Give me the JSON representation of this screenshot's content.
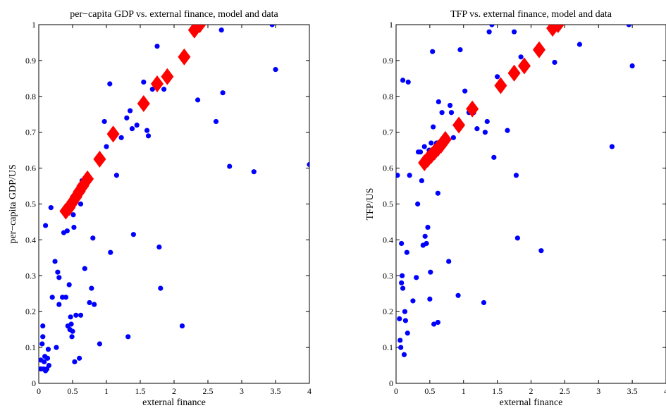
{
  "colors": {
    "data": "#0000ff",
    "model": "#ff0000",
    "axes": "#000000"
  },
  "chart_data": [
    {
      "type": "scatter",
      "title": "per−capita GDP vs. external finance, model and data",
      "xlabel": "external finance",
      "ylabel": "per−capita GDP/US",
      "xlim": [
        0,
        4
      ],
      "ylim": [
        0,
        1
      ],
      "xticks": [
        "0",
        "0.5",
        "1",
        "1.5",
        "2",
        "2.5",
        "3",
        "3.5",
        "4"
      ],
      "yticks": [
        "0",
        "0.1",
        "0.2",
        "0.3",
        "0.4",
        "0.5",
        "0.6",
        "0.7",
        "0.8",
        "0.9",
        "1"
      ],
      "grid": false,
      "series": [
        {
          "marker": "circle",
          "points": [
            [
              0.03,
              0.065
            ],
            [
              0.03,
              0.04
            ],
            [
              0.05,
              0.11
            ],
            [
              0.06,
              0.13
            ],
            [
              0.06,
              0.16
            ],
            [
              0.07,
              0.04
            ],
            [
              0.08,
              0.06
            ],
            [
              0.09,
              0.075
            ],
            [
              0.1,
              0.035
            ],
            [
              0.12,
              0.04
            ],
            [
              0.13,
              0.07
            ],
            [
              0.15,
              0.05
            ],
            [
              0.1,
              0.44
            ],
            [
              0.14,
              0.095
            ],
            [
              0.18,
              0.49
            ],
            [
              0.2,
              0.24
            ],
            [
              0.24,
              0.34
            ],
            [
              0.26,
              0.1
            ],
            [
              0.28,
              0.31
            ],
            [
              0.3,
              0.22
            ],
            [
              0.3,
              0.295
            ],
            [
              0.35,
              0.24
            ],
            [
              0.37,
              0.42
            ],
            [
              0.4,
              0.24
            ],
            [
              0.42,
              0.425
            ],
            [
              0.43,
              0.16
            ],
            [
              0.45,
              0.275
            ],
            [
              0.46,
              0.15
            ],
            [
              0.47,
              0.185
            ],
            [
              0.48,
              0.165
            ],
            [
              0.49,
              0.13
            ],
            [
              0.5,
              0.145
            ],
            [
              0.51,
              0.47
            ],
            [
              0.52,
              0.435
            ],
            [
              0.53,
              0.06
            ],
            [
              0.55,
              0.19
            ],
            [
              0.57,
              0.525
            ],
            [
              0.6,
              0.07
            ],
            [
              0.62,
              0.5
            ],
            [
              0.62,
              0.19
            ],
            [
              0.64,
              0.565
            ],
            [
              0.68,
              0.32
            ],
            [
              0.75,
              0.225
            ],
            [
              0.78,
              0.265
            ],
            [
              0.8,
              0.405
            ],
            [
              0.82,
              0.22
            ],
            [
              0.9,
              0.11
            ],
            [
              0.97,
              0.73
            ],
            [
              1.0,
              0.66
            ],
            [
              1.05,
              0.835
            ],
            [
              1.06,
              0.365
            ],
            [
              1.15,
              0.58
            ],
            [
              1.22,
              0.685
            ],
            [
              1.3,
              0.74
            ],
            [
              1.32,
              0.13
            ],
            [
              1.35,
              0.76
            ],
            [
              1.38,
              0.71
            ],
            [
              1.4,
              0.415
            ],
            [
              1.45,
              0.72
            ],
            [
              1.55,
              0.84
            ],
            [
              1.6,
              0.705
            ],
            [
              1.62,
              0.69
            ],
            [
              1.68,
              0.82
            ],
            [
              1.75,
              0.94
            ],
            [
              1.78,
              0.38
            ],
            [
              1.8,
              0.265
            ],
            [
              1.85,
              0.82
            ],
            [
              2.12,
              0.16
            ],
            [
              2.35,
              0.79
            ],
            [
              2.62,
              0.73
            ],
            [
              2.7,
              0.985
            ],
            [
              2.72,
              0.81
            ],
            [
              2.82,
              0.605
            ],
            [
              3.18,
              0.59
            ],
            [
              3.45,
              1.0
            ],
            [
              3.5,
              0.875
            ],
            [
              4.0,
              0.61
            ]
          ]
        },
        {
          "marker": "diamond",
          "points": [
            [
              0.4,
              0.48
            ],
            [
              0.45,
              0.49
            ],
            [
              0.5,
              0.505
            ],
            [
              0.55,
              0.52
            ],
            [
              0.6,
              0.535
            ],
            [
              0.65,
              0.55
            ],
            [
              0.72,
              0.57
            ],
            [
              0.9,
              0.625
            ],
            [
              1.1,
              0.695
            ],
            [
              1.55,
              0.78
            ],
            [
              1.75,
              0.835
            ],
            [
              1.9,
              0.855
            ],
            [
              2.15,
              0.91
            ],
            [
              2.3,
              0.985
            ],
            [
              2.38,
              1.0
            ]
          ]
        }
      ]
    },
    {
      "type": "scatter",
      "title": "TFP vs. external finance, model and data",
      "xlabel": "external finance",
      "ylabel": "TFP/US",
      "xlim": [
        0,
        4
      ],
      "ylim": [
        0,
        1
      ],
      "xticks": [
        "0",
        "0.5",
        "1",
        "1.5",
        "2",
        "2.5",
        "3",
        "3.5",
        "4"
      ],
      "yticks": [
        "0",
        "0.1",
        "0.2",
        "0.3",
        "0.4",
        "0.5",
        "0.6",
        "0.7",
        "0.8",
        "0.9",
        "1"
      ],
      "grid": false,
      "series": [
        {
          "marker": "circle",
          "points": [
            [
              0.02,
              0.58
            ],
            [
              0.05,
              0.18
            ],
            [
              0.06,
              0.12
            ],
            [
              0.07,
              0.1
            ],
            [
              0.08,
              0.28
            ],
            [
              0.08,
              0.39
            ],
            [
              0.09,
              0.3
            ],
            [
              0.1,
              0.265
            ],
            [
              0.1,
              0.845
            ],
            [
              0.12,
              0.08
            ],
            [
              0.13,
              0.2
            ],
            [
              0.14,
              0.175
            ],
            [
              0.16,
              0.365
            ],
            [
              0.17,
              0.14
            ],
            [
              0.18,
              0.84
            ],
            [
              0.2,
              0.58
            ],
            [
              0.25,
              0.23
            ],
            [
              0.3,
              0.295
            ],
            [
              0.32,
              0.5
            ],
            [
              0.33,
              0.645
            ],
            [
              0.36,
              0.645
            ],
            [
              0.38,
              0.565
            ],
            [
              0.4,
              0.385
            ],
            [
              0.42,
              0.66
            ],
            [
              0.43,
              0.41
            ],
            [
              0.45,
              0.39
            ],
            [
              0.47,
              0.435
            ],
            [
              0.49,
              0.65
            ],
            [
              0.5,
              0.235
            ],
            [
              0.51,
              0.31
            ],
            [
              0.52,
              0.67
            ],
            [
              0.55,
              0.715
            ],
            [
              0.54,
              0.925
            ],
            [
              0.56,
              0.165
            ],
            [
              0.6,
              0.67
            ],
            [
              0.62,
              0.53
            ],
            [
              0.62,
              0.17
            ],
            [
              0.63,
              0.785
            ],
            [
              0.68,
              0.755
            ],
            [
              0.7,
              0.67
            ],
            [
              0.78,
              0.34
            ],
            [
              0.8,
              0.775
            ],
            [
              0.82,
              0.755
            ],
            [
              0.85,
              0.685
            ],
            [
              0.92,
              0.245
            ],
            [
              0.95,
              0.93
            ],
            [
              1.02,
              0.815
            ],
            [
              1.08,
              0.755
            ],
            [
              1.15,
              0.755
            ],
            [
              1.2,
              0.71
            ],
            [
              1.3,
              0.225
            ],
            [
              1.32,
              0.7
            ],
            [
              1.35,
              0.73
            ],
            [
              1.38,
              0.98
            ],
            [
              1.42,
              1.0
            ],
            [
              1.45,
              0.63
            ],
            [
              1.5,
              0.855
            ],
            [
              1.65,
              0.705
            ],
            [
              1.75,
              0.98
            ],
            [
              1.78,
              0.58
            ],
            [
              1.8,
              0.405
            ],
            [
              1.85,
              0.91
            ],
            [
              2.15,
              0.37
            ],
            [
              2.35,
              0.895
            ],
            [
              2.72,
              0.945
            ],
            [
              3.2,
              0.66
            ],
            [
              3.45,
              1.0
            ],
            [
              3.5,
              0.885
            ]
          ]
        },
        {
          "marker": "diamond",
          "points": [
            [
              0.42,
              0.615
            ],
            [
              0.47,
              0.625
            ],
            [
              0.52,
              0.635
            ],
            [
              0.57,
              0.645
            ],
            [
              0.62,
              0.655
            ],
            [
              0.67,
              0.665
            ],
            [
              0.73,
              0.68
            ],
            [
              0.93,
              0.72
            ],
            [
              1.13,
              0.765
            ],
            [
              1.55,
              0.83
            ],
            [
              1.75,
              0.865
            ],
            [
              1.9,
              0.885
            ],
            [
              2.12,
              0.93
            ],
            [
              2.32,
              0.99
            ],
            [
              2.4,
              1.0
            ]
          ]
        }
      ]
    }
  ]
}
